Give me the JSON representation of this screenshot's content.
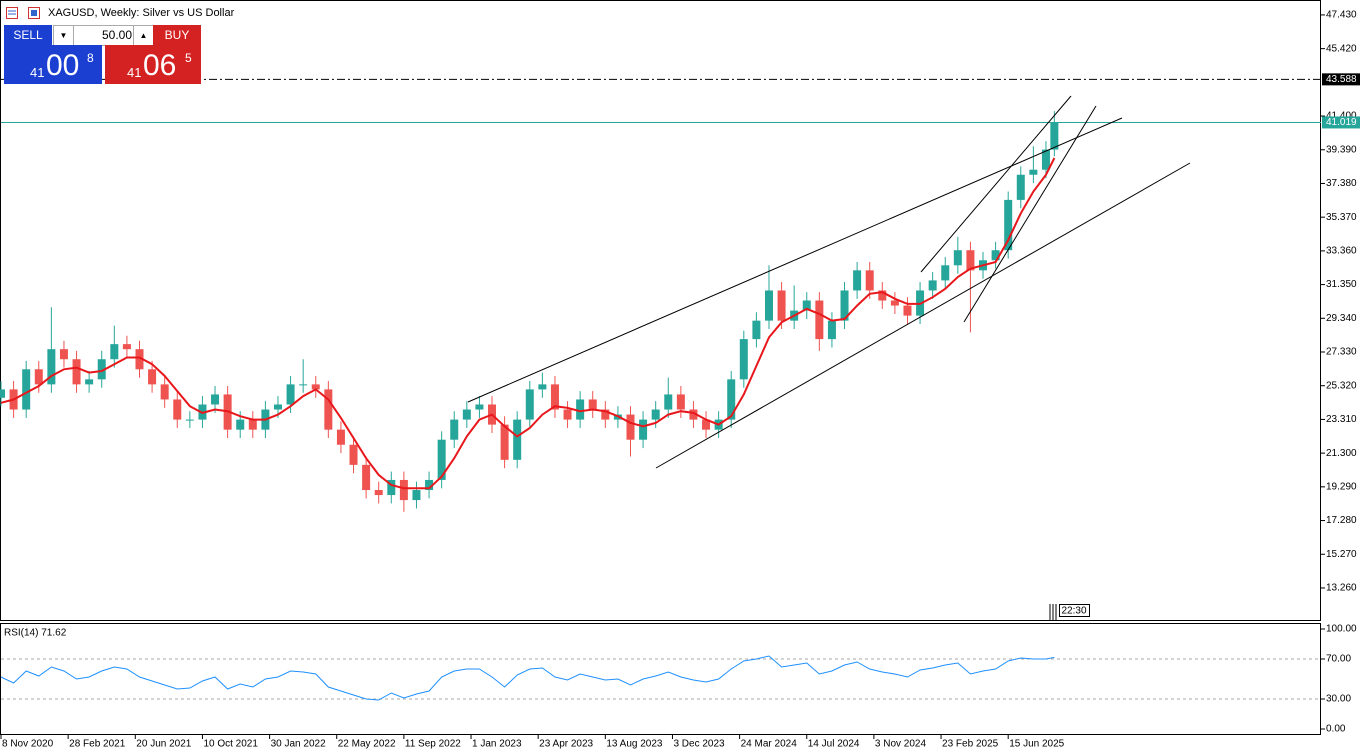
{
  "header": {
    "title": "XAGUSD, Weekly:  Silver vs US Dollar",
    "sell": "SELL",
    "buy": "BUY",
    "volume": "50.00",
    "bid": {
      "prefix": "41",
      "big": "00",
      "small": "8"
    },
    "ask": {
      "prefix": "41",
      "big": "06",
      "small": "5"
    },
    "timer": "22:30"
  },
  "chart_data": [
    {
      "type": "candlestick",
      "up_color": "#26a69a",
      "down_color": "#ef5350",
      "ma_color": "#e8171b",
      "x": [
        0,
        3,
        6,
        9,
        12,
        15,
        18,
        21,
        24,
        27,
        30,
        33,
        36,
        39,
        42,
        45,
        48,
        51,
        54,
        57,
        60,
        63,
        66,
        69,
        72,
        75,
        78,
        81,
        84,
        87,
        90,
        93,
        96,
        99,
        102,
        105,
        108,
        111,
        114,
        117,
        120,
        123,
        126,
        129,
        132,
        135,
        138,
        141,
        144,
        147,
        150,
        153,
        156,
        159,
        162,
        165,
        168,
        171,
        174,
        177,
        180,
        183,
        186,
        189,
        192,
        195,
        198,
        201,
        204,
        207,
        210,
        213,
        216,
        219,
        222,
        225,
        228,
        231,
        234,
        237,
        240,
        243,
        246,
        249,
        251
      ],
      "open": [
        24.6,
        25.1,
        23.9,
        26.3,
        25.4,
        27.5,
        26.9,
        25.4,
        25.7,
        26.9,
        27.8,
        27.5,
        26.3,
        25.4,
        24.5,
        23.3,
        23.3,
        24.2,
        24.8,
        22.7,
        23.3,
        22.7,
        23.9,
        24.2,
        25.4,
        25.4,
        25.1,
        22.7,
        21.8,
        20.6,
        19.1,
        18.8,
        19.7,
        18.5,
        19.1,
        19.7,
        22.1,
        23.3,
        23.9,
        24.2,
        23.0,
        20.9,
        23.3,
        25.1,
        25.4,
        23.9,
        23.3,
        24.5,
        23.9,
        23.3,
        23.6,
        22.1,
        23.3,
        23.9,
        24.8,
        23.9,
        23.3,
        22.7,
        23.3,
        25.7,
        28.1,
        29.2,
        31.0,
        29.2,
        29.8,
        30.4,
        28.1,
        29.2,
        31.0,
        32.2,
        31.0,
        30.4,
        30.1,
        29.5,
        31.0,
        31.6,
        32.5,
        33.4,
        32.2,
        32.8,
        33.4,
        36.4,
        37.9,
        38.2,
        39.4
      ],
      "high": [
        25.6,
        25.6,
        26.8,
        26.8,
        30.0,
        28.0,
        27.4,
        26.2,
        27.4,
        28.9,
        28.3,
        28.0,
        26.8,
        25.9,
        25.0,
        23.8,
        24.7,
        25.3,
        25.3,
        23.8,
        23.8,
        24.4,
        24.7,
        25.9,
        26.9,
        25.9,
        25.6,
        23.2,
        22.3,
        21.1,
        19.6,
        20.2,
        20.2,
        19.6,
        20.2,
        22.6,
        23.8,
        24.4,
        24.7,
        24.7,
        23.5,
        23.8,
        25.6,
        26.1,
        25.9,
        24.4,
        25.0,
        25.0,
        24.4,
        24.1,
        24.1,
        23.8,
        24.4,
        25.8,
        25.3,
        24.4,
        23.8,
        23.8,
        26.2,
        28.6,
        29.7,
        32.5,
        31.5,
        31.3,
        30.9,
        30.9,
        29.7,
        31.5,
        32.7,
        32.7,
        31.5,
        30.9,
        30.6,
        31.5,
        32.1,
        33.0,
        34.2,
        33.9,
        33.3,
        33.9,
        36.9,
        38.4,
        39.6,
        39.9,
        41.7
      ],
      "low": [
        24.1,
        23.4,
        23.4,
        24.9,
        24.9,
        26.4,
        24.9,
        24.9,
        25.2,
        26.4,
        27.0,
        25.8,
        24.9,
        24.0,
        22.8,
        22.8,
        22.8,
        23.7,
        22.2,
        22.2,
        22.2,
        22.2,
        23.4,
        23.7,
        24.9,
        24.6,
        22.2,
        21.3,
        20.1,
        18.6,
        18.3,
        18.3,
        17.8,
        18.0,
        18.6,
        19.2,
        21.6,
        22.8,
        23.4,
        22.5,
        20.4,
        20.4,
        22.8,
        24.6,
        23.4,
        22.8,
        22.8,
        23.4,
        22.8,
        22.8,
        21.1,
        21.6,
        22.8,
        23.4,
        23.4,
        22.8,
        22.2,
        22.2,
        22.8,
        25.2,
        27.6,
        28.7,
        28.7,
        28.7,
        29.3,
        27.4,
        27.6,
        28.7,
        30.5,
        30.5,
        29.9,
        29.6,
        29.0,
        29.0,
        30.5,
        31.1,
        32.0,
        28.5,
        31.7,
        32.3,
        32.9,
        35.9,
        37.4,
        37.7,
        39.0
      ],
      "close": [
        25.1,
        23.9,
        26.3,
        25.4,
        27.5,
        26.9,
        25.4,
        25.7,
        26.9,
        27.8,
        27.5,
        26.3,
        25.4,
        24.5,
        23.3,
        23.3,
        24.2,
        24.8,
        22.7,
        23.3,
        22.7,
        23.9,
        24.2,
        25.4,
        25.4,
        25.1,
        22.7,
        21.8,
        20.6,
        19.1,
        18.8,
        19.7,
        18.5,
        19.1,
        19.7,
        22.1,
        23.3,
        23.9,
        24.2,
        23.0,
        20.9,
        23.3,
        25.1,
        25.4,
        23.9,
        23.3,
        24.5,
        23.9,
        23.3,
        23.6,
        22.1,
        23.3,
        23.9,
        24.8,
        23.9,
        23.3,
        22.7,
        23.3,
        25.7,
        28.1,
        29.2,
        31.0,
        29.2,
        29.8,
        30.4,
        28.1,
        29.2,
        31.0,
        32.2,
        31.0,
        30.4,
        30.1,
        29.5,
        31.0,
        31.6,
        32.5,
        33.4,
        32.2,
        32.8,
        33.4,
        36.4,
        37.9,
        38.2,
        39.4,
        41.02
      ],
      "ma": [
        24.3,
        24.5,
        24.9,
        25.3,
        25.9,
        26.3,
        26.4,
        26.1,
        26.2,
        26.6,
        27.0,
        27.0,
        26.6,
        25.9,
        25.0,
        24.1,
        23.7,
        23.9,
        23.8,
        23.5,
        23.3,
        23.3,
        23.6,
        24.1,
        24.7,
        25.1,
        24.5,
        23.4,
        22.2,
        21.0,
        20.0,
        19.4,
        19.2,
        19.2,
        19.2,
        19.9,
        21.0,
        22.3,
        23.3,
        23.6,
        22.9,
        22.3,
        22.8,
        23.6,
        24.1,
        24.0,
        23.8,
        23.9,
        23.8,
        23.5,
        23.1,
        22.9,
        23.1,
        23.6,
        23.8,
        23.7,
        23.3,
        23.0,
        23.5,
        24.8,
        26.5,
        28.2,
        29.1,
        29.5,
        29.9,
        29.6,
        29.2,
        29.3,
        30.1,
        30.8,
        30.9,
        30.5,
        30.2,
        30.2,
        30.6,
        31.1,
        31.8,
        32.3,
        32.5,
        32.7,
        34.0,
        35.6,
        36.9,
        37.9,
        38.9
      ],
      "xlim": [
        -0.24,
        314.3
      ],
      "ylim": [
        11.29,
        48.32
      ],
      "xticks": [
        {
          "value": 0,
          "label": "8 Nov 2020"
        },
        {
          "value": 16,
          "label": "28 Feb 2021"
        },
        {
          "value": 32,
          "label": "20 Jun 2021"
        },
        {
          "value": 48,
          "label": "10 Oct 2021"
        },
        {
          "value": 64,
          "label": "30 Jan 2022"
        },
        {
          "value": 80,
          "label": "22 May 2022"
        },
        {
          "value": 96,
          "label": "11 Sep 2022"
        },
        {
          "value": 112,
          "label": "1 Jan 2023"
        },
        {
          "value": 128,
          "label": "23 Apr 2023"
        },
        {
          "value": 144,
          "label": "13 Aug 2023"
        },
        {
          "value": 160,
          "label": "3 Dec 2023"
        },
        {
          "value": 176,
          "label": "24 Mar 2024"
        },
        {
          "value": 192,
          "label": "14 Jul 2024"
        },
        {
          "value": 208,
          "label": "3 Nov 2024"
        },
        {
          "value": 224,
          "label": "23 Feb 2025"
        },
        {
          "value": 240,
          "label": "15 Jun 2025"
        }
      ],
      "yticks": [
        {
          "value": 47.43,
          "label": "47.430"
        },
        {
          "value": 45.42,
          "label": "45.420"
        },
        {
          "value": 41.4,
          "label": "41.400"
        },
        {
          "value": 39.39,
          "label": "39.390"
        },
        {
          "value": 37.38,
          "label": "37.380"
        },
        {
          "value": 35.37,
          "label": "35.370"
        },
        {
          "value": 33.36,
          "label": "33.360"
        },
        {
          "value": 31.35,
          "label": "31.350"
        },
        {
          "value": 29.34,
          "label": "29.340"
        },
        {
          "value": 27.33,
          "label": "27.330"
        },
        {
          "value": 25.32,
          "label": "25.320"
        },
        {
          "value": 23.31,
          "label": "23.310"
        },
        {
          "value": 21.3,
          "label": "21.300"
        },
        {
          "value": 19.29,
          "label": "19.290"
        },
        {
          "value": 17.28,
          "label": "17.280"
        },
        {
          "value": 15.27,
          "label": "15.270"
        },
        {
          "value": 13.26,
          "label": "13.260"
        }
      ],
      "level": 43.588,
      "price": 41.019,
      "price_color": "#26a69a"
    },
    {
      "type": "line",
      "title": "RSI(14) 71.62",
      "color": "#1e90ff",
      "ylim": [
        -6,
        106
      ],
      "values": [
        52,
        46,
        58,
        53,
        62,
        58,
        50,
        52,
        58,
        62,
        60,
        52,
        48,
        44,
        40,
        41,
        48,
        52,
        40,
        45,
        42,
        50,
        52,
        58,
        57,
        55,
        42,
        38,
        34,
        30,
        29,
        36,
        31,
        35,
        38,
        52,
        58,
        60,
        60,
        52,
        42,
        54,
        60,
        61,
        52,
        49,
        55,
        52,
        49,
        50,
        44,
        50,
        53,
        57,
        52,
        49,
        47,
        50,
        60,
        68,
        70,
        73,
        62,
        64,
        66,
        55,
        58,
        64,
        67,
        60,
        57,
        55,
        52,
        59,
        61,
        64,
        66,
        55,
        58,
        60,
        68,
        71,
        70,
        70,
        71.62
      ],
      "yticks": [
        {
          "value": 100,
          "label": "100.00"
        },
        {
          "value": 70,
          "label": "70.00"
        },
        {
          "value": 30,
          "label": "30.00"
        },
        {
          "value": 0,
          "label": "0.00"
        }
      ],
      "levels": [
        70,
        30
      ]
    }
  ]
}
